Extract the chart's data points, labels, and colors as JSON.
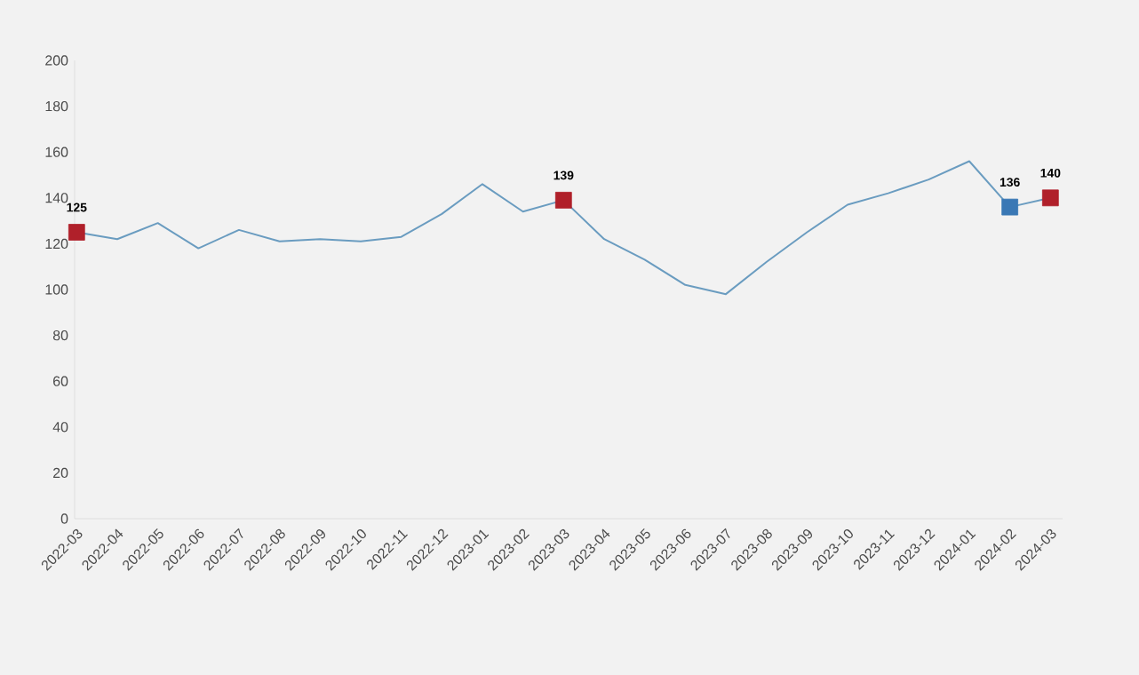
{
  "chart_data": {
    "type": "line",
    "categories": [
      "2022-03",
      "2022-04",
      "2022-05",
      "2022-06",
      "2022-07",
      "2022-08",
      "2022-09",
      "2022-10",
      "2022-11",
      "2022-12",
      "2023-01",
      "2023-02",
      "2023-03",
      "2023-04",
      "2023-05",
      "2023-06",
      "2023-07",
      "2023-08",
      "2023-09",
      "2023-10",
      "2023-11",
      "2023-12",
      "2024-01",
      "2024-02",
      "2024-03"
    ],
    "series": [
      {
        "color": "#6a9cc0",
        "values": [
          125,
          122,
          129,
          118,
          126,
          121,
          122,
          121,
          123,
          133,
          146,
          134,
          139,
          122,
          113,
          102,
          98,
          112,
          125,
          137,
          142,
          148,
          156,
          136,
          140
        ],
        "colors": [
          "#b0202a",
          null,
          null,
          null,
          null,
          null,
          null,
          null,
          null,
          null,
          null,
          null,
          "#b0202a",
          null,
          null,
          null,
          null,
          null,
          null,
          null,
          null,
          null,
          null,
          "#3a78b5",
          "#b0202a"
        ],
        "value_labels": [
          "125",
          null,
          null,
          null,
          null,
          null,
          null,
          null,
          null,
          null,
          null,
          null,
          "139",
          null,
          null,
          null,
          null,
          null,
          null,
          null,
          null,
          null,
          null,
          "136",
          "140"
        ]
      }
    ],
    "ylim": [
      0,
      200
    ],
    "yticks": [
      0,
      20,
      40,
      60,
      80,
      100,
      120,
      140,
      160,
      180,
      200
    ],
    "grid": false
  }
}
